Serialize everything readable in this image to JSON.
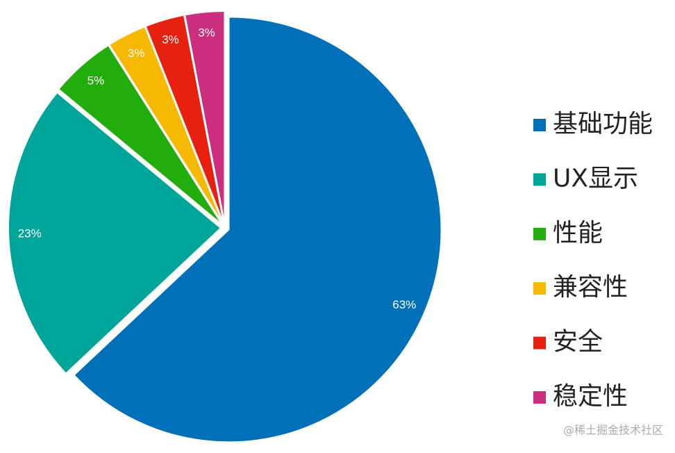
{
  "chart_data": {
    "type": "pie",
    "categories": [
      "基础功能",
      "UX显示",
      "性能",
      "兼容性",
      "安全",
      "稳定性"
    ],
    "values": [
      63,
      23,
      5,
      3,
      3,
      3
    ],
    "value_labels": [
      "63%",
      "23%",
      "5%",
      "3%",
      "3%",
      "3%"
    ],
    "colors": [
      "#0070b8",
      "#00a59a",
      "#22ad0c",
      "#f6b800",
      "#e8200f",
      "#cc2f7d"
    ],
    "legend": "right",
    "watermark": "@稀土掘金技术社区"
  }
}
